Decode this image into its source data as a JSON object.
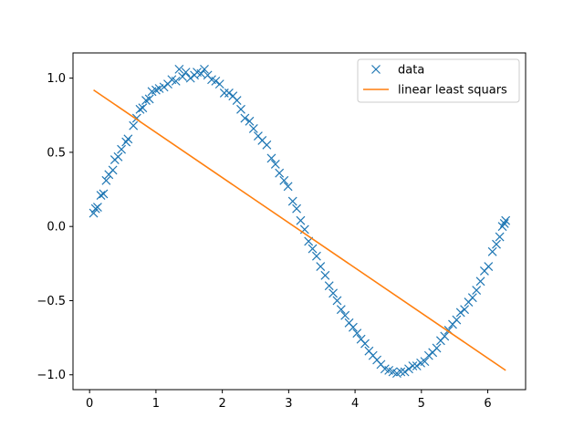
{
  "chart_data": {
    "type": "scatter",
    "title": "",
    "xlabel": "",
    "ylabel": "",
    "xlim": [
      -0.25,
      6.57
    ],
    "ylim": [
      -1.1,
      1.17
    ],
    "x_ticks": [
      0,
      1,
      2,
      3,
      4,
      5,
      6
    ],
    "y_ticks": [
      -1.0,
      -0.5,
      0.0,
      0.5,
      1.0
    ],
    "x_tick_labels": [
      "0",
      "1",
      "2",
      "3",
      "4",
      "5",
      "6"
    ],
    "y_tick_labels": [
      "−1.0",
      "−0.5",
      "0.0",
      "0.5",
      "1.0"
    ],
    "grid": false,
    "legend_position": "upper right",
    "colors": {
      "data": "#1f77b4",
      "fit": "#ff7f0e",
      "axes": "#000000",
      "legend_border": "#cccccc"
    },
    "series": [
      {
        "name": "data",
        "type": "scatter",
        "marker": "x",
        "points": [
          [
            0.06,
            0.09
          ],
          [
            0.09,
            0.12
          ],
          [
            0.12,
            0.13
          ],
          [
            0.17,
            0.21
          ],
          [
            0.21,
            0.22
          ],
          [
            0.25,
            0.31
          ],
          [
            0.29,
            0.35
          ],
          [
            0.35,
            0.38
          ],
          [
            0.38,
            0.45
          ],
          [
            0.43,
            0.47
          ],
          [
            0.48,
            0.52
          ],
          [
            0.55,
            0.57
          ],
          [
            0.58,
            0.59
          ],
          [
            0.66,
            0.68
          ],
          [
            0.71,
            0.73
          ],
          [
            0.76,
            0.79
          ],
          [
            0.8,
            0.8
          ],
          [
            0.85,
            0.85
          ],
          [
            0.9,
            0.86
          ],
          [
            0.94,
            0.91
          ],
          [
            1.0,
            0.92
          ],
          [
            1.05,
            0.93
          ],
          [
            1.12,
            0.94
          ],
          [
            1.18,
            0.96
          ],
          [
            1.24,
            0.99
          ],
          [
            1.3,
            0.98
          ],
          [
            1.35,
            1.06
          ],
          [
            1.4,
            1.01
          ],
          [
            1.45,
            1.04
          ],
          [
            1.52,
            1.0
          ],
          [
            1.58,
            1.02
          ],
          [
            1.62,
            1.04
          ],
          [
            1.68,
            1.03
          ],
          [
            1.73,
            1.06
          ],
          [
            1.78,
            1.02
          ],
          [
            1.84,
            0.99
          ],
          [
            1.9,
            0.98
          ],
          [
            1.96,
            0.96
          ],
          [
            2.03,
            0.9
          ],
          [
            2.1,
            0.9
          ],
          [
            2.16,
            0.88
          ],
          [
            2.22,
            0.85
          ],
          [
            2.28,
            0.79
          ],
          [
            2.34,
            0.73
          ],
          [
            2.41,
            0.71
          ],
          [
            2.47,
            0.66
          ],
          [
            2.54,
            0.61
          ],
          [
            2.6,
            0.58
          ],
          [
            2.67,
            0.55
          ],
          [
            2.74,
            0.46
          ],
          [
            2.8,
            0.42
          ],
          [
            2.86,
            0.36
          ],
          [
            2.93,
            0.31
          ],
          [
            2.99,
            0.27
          ],
          [
            3.06,
            0.17
          ],
          [
            3.12,
            0.12
          ],
          [
            3.18,
            0.04
          ],
          [
            3.24,
            -0.02
          ],
          [
            3.3,
            -0.1
          ],
          [
            3.36,
            -0.15
          ],
          [
            3.42,
            -0.2
          ],
          [
            3.48,
            -0.27
          ],
          [
            3.55,
            -0.33
          ],
          [
            3.61,
            -0.4
          ],
          [
            3.67,
            -0.45
          ],
          [
            3.73,
            -0.5
          ],
          [
            3.79,
            -0.56
          ],
          [
            3.85,
            -0.6
          ],
          [
            3.91,
            -0.65
          ],
          [
            3.97,
            -0.68
          ],
          [
            4.03,
            -0.72
          ],
          [
            4.09,
            -0.76
          ],
          [
            4.15,
            -0.79
          ],
          [
            4.21,
            -0.84
          ],
          [
            4.27,
            -0.87
          ],
          [
            4.33,
            -0.9
          ],
          [
            4.39,
            -0.93
          ],
          [
            4.45,
            -0.96
          ],
          [
            4.51,
            -0.97
          ],
          [
            4.57,
            -0.98
          ],
          [
            4.63,
            -0.99
          ],
          [
            4.69,
            -0.98
          ],
          [
            4.75,
            -0.98
          ],
          [
            4.81,
            -0.96
          ],
          [
            4.87,
            -0.94
          ],
          [
            4.93,
            -0.94
          ],
          [
            4.99,
            -0.92
          ],
          [
            5.05,
            -0.91
          ],
          [
            5.11,
            -0.87
          ],
          [
            5.17,
            -0.85
          ],
          [
            5.23,
            -0.82
          ],
          [
            5.29,
            -0.77
          ],
          [
            5.35,
            -0.74
          ],
          [
            5.41,
            -0.7
          ],
          [
            5.47,
            -0.66
          ],
          [
            5.53,
            -0.63
          ],
          [
            5.59,
            -0.58
          ],
          [
            5.65,
            -0.56
          ],
          [
            5.71,
            -0.51
          ],
          [
            5.77,
            -0.48
          ],
          [
            5.83,
            -0.43
          ],
          [
            5.89,
            -0.37
          ],
          [
            5.95,
            -0.3
          ],
          [
            6.01,
            -0.27
          ],
          [
            6.07,
            -0.17
          ],
          [
            6.13,
            -0.12
          ],
          [
            6.18,
            -0.07
          ],
          [
            6.22,
            0.0
          ],
          [
            6.25,
            0.02
          ],
          [
            6.27,
            0.04
          ]
        ]
      },
      {
        "name": "linear least squars",
        "type": "line",
        "points": [
          [
            0.06,
            0.92
          ],
          [
            6.27,
            -0.97
          ]
        ]
      }
    ]
  }
}
